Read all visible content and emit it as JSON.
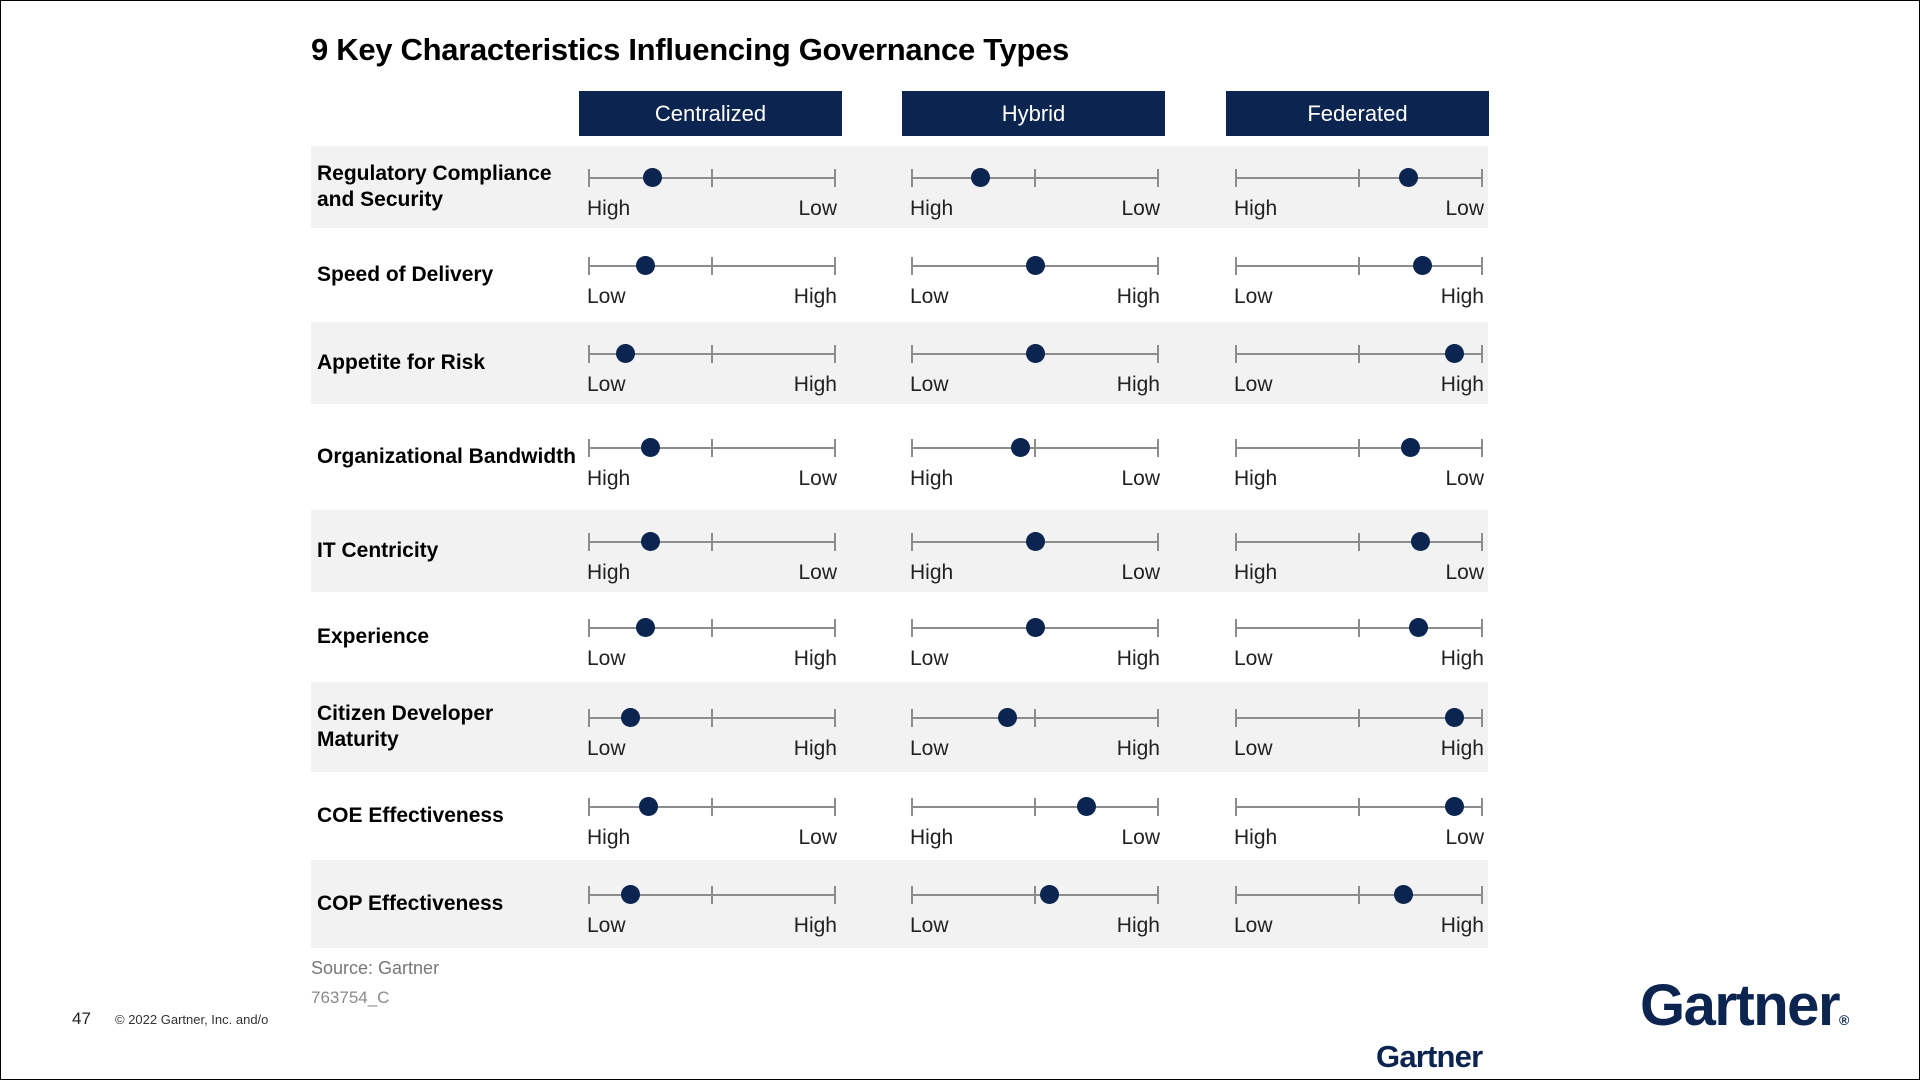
{
  "title": "9 Key Characteristics Influencing Governance Types",
  "columns": [
    "Centralized",
    "Hybrid",
    "Federated"
  ],
  "rows": [
    {
      "label": "Regulatory Compliance and Security",
      "left": "High",
      "right": "Low",
      "values": [
        0.26,
        0.28,
        0.7
      ]
    },
    {
      "label": "Speed of Delivery",
      "left": "Low",
      "right": "High",
      "values": [
        0.23,
        0.5,
        0.76
      ]
    },
    {
      "label": "Appetite for Risk",
      "left": "Low",
      "right": "High",
      "values": [
        0.15,
        0.5,
        0.89
      ]
    },
    {
      "label": "Organizational Bandwidth",
      "left": "High",
      "right": "Low",
      "values": [
        0.25,
        0.44,
        0.71
      ]
    },
    {
      "label": "IT Centricity",
      "left": "High",
      "right": "Low",
      "values": [
        0.25,
        0.5,
        0.75
      ]
    },
    {
      "label": "Experience",
      "left": "Low",
      "right": "High",
      "values": [
        0.23,
        0.5,
        0.74
      ]
    },
    {
      "label": "Citizen Developer Maturity",
      "left": "Low",
      "right": "High",
      "values": [
        0.17,
        0.39,
        0.89
      ]
    },
    {
      "label": "COE Effectiveness",
      "left": "High",
      "right": "Low",
      "values": [
        0.24,
        0.71,
        0.89
      ]
    },
    {
      "label": "COP Effectiveness",
      "left": "Low",
      "right": "High",
      "values": [
        0.17,
        0.56,
        0.68
      ]
    }
  ],
  "source": "Source: Gartner",
  "doc_id": "763754_C",
  "page_number": "47",
  "copyright": "© 2022 Gartner, Inc. and/o",
  "logo_text": "Gartner",
  "logo_mark": "®",
  "colors": {
    "navy": "#0b2450",
    "row_shade": "#f2f2f2",
    "scale_line": "#8c8c8c"
  }
}
